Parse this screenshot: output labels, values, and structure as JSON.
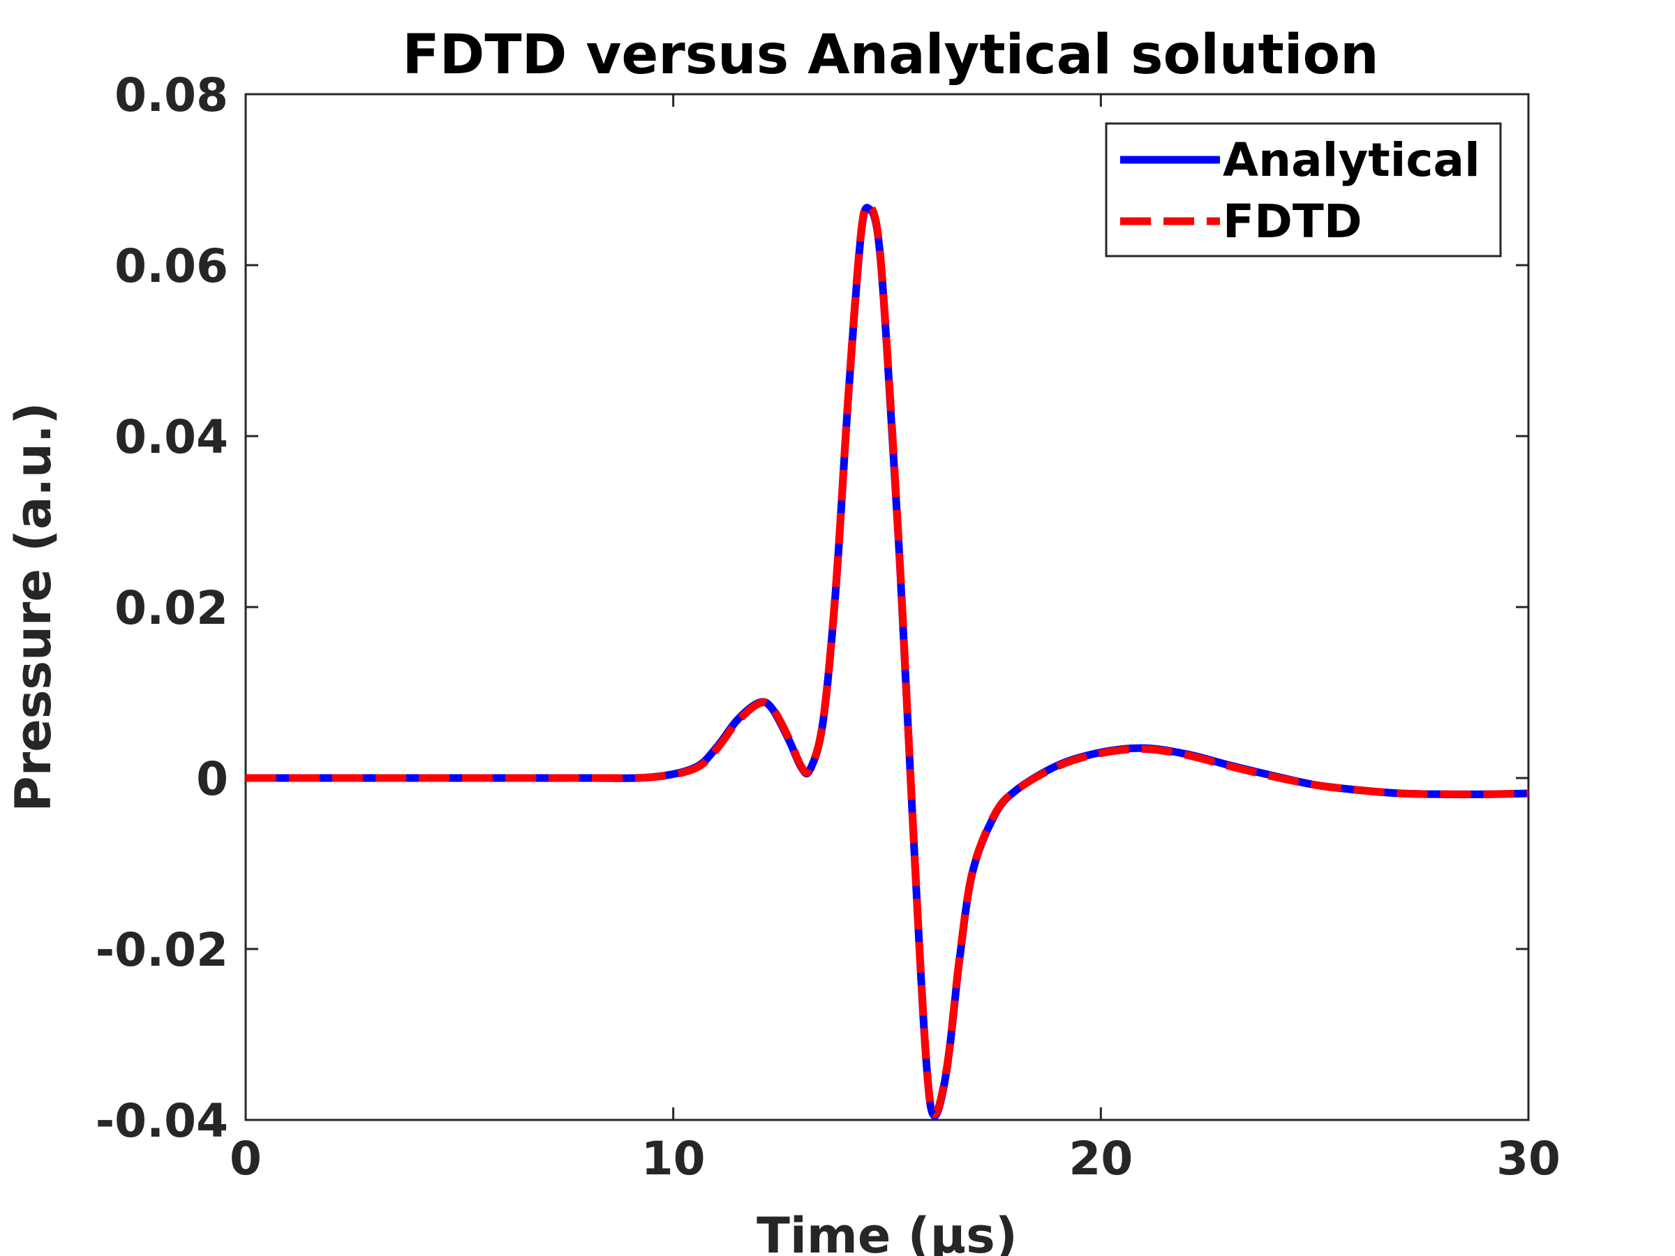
{
  "chart_data": {
    "type": "line",
    "title": "FDTD versus Analytical solution",
    "xlabel": "Time (μs)",
    "ylabel": "Pressure (a.u.)",
    "xlim": [
      0,
      30
    ],
    "ylim": [
      -0.04,
      0.08
    ],
    "xticks": [
      0,
      10,
      20,
      30
    ],
    "xtick_labels": [
      "0",
      "10",
      "20",
      "30"
    ],
    "yticks": [
      -0.04,
      -0.02,
      0,
      0.02,
      0.04,
      0.06,
      0.08
    ],
    "ytick_labels": [
      "-0.04",
      "-0.02",
      "0",
      "0.02",
      "0.04",
      "0.06",
      "0.08"
    ],
    "grid": false,
    "legend_position": "top-right",
    "series": [
      {
        "name": "Analytical",
        "color": "#0000ff",
        "style": "solid",
        "x": [
          0,
          2,
          4,
          6,
          8,
          9.5,
          10.5,
          11,
          11.5,
          12,
          12.3,
          12.7,
          13.0,
          13.2,
          13.5,
          13.8,
          14.1,
          14.4,
          14.6,
          14.8,
          15.0,
          15.3,
          15.6,
          15.9,
          16.1,
          16.4,
          16.7,
          17.0,
          17.5,
          18.0,
          19.0,
          20.0,
          21.0,
          22.0,
          23.0,
          24.0,
          25.0,
          26.0,
          27.0,
          28.0,
          29.0,
          30.0
        ],
        "y": [
          0,
          0,
          0,
          0,
          0,
          0.0001,
          0.0012,
          0.0035,
          0.0068,
          0.0088,
          0.0082,
          0.0045,
          0.0012,
          0.001,
          0.0065,
          0.022,
          0.045,
          0.064,
          0.0665,
          0.063,
          0.05,
          0.025,
          -0.005,
          -0.032,
          -0.0395,
          -0.034,
          -0.021,
          -0.011,
          -0.0045,
          -0.0015,
          0.0015,
          0.003,
          0.0035,
          0.0028,
          0.0015,
          0.0003,
          -0.0008,
          -0.0014,
          -0.0018,
          -0.0019,
          -0.0019,
          -0.0018
        ]
      },
      {
        "name": "FDTD",
        "color": "#ff0000",
        "style": "dashed",
        "x": [
          0,
          2,
          4,
          6,
          8,
          9.5,
          10.5,
          11,
          11.5,
          12,
          12.3,
          12.7,
          13.0,
          13.2,
          13.5,
          13.8,
          14.1,
          14.4,
          14.6,
          14.8,
          15.0,
          15.3,
          15.6,
          15.9,
          16.1,
          16.4,
          16.7,
          17.0,
          17.5,
          18.0,
          19.0,
          20.0,
          21.0,
          22.0,
          23.0,
          24.0,
          25.0,
          26.0,
          27.0,
          28.0,
          29.0,
          30.0
        ],
        "y": [
          0,
          0,
          0,
          0,
          0,
          0.0001,
          0.0011,
          0.0033,
          0.0066,
          0.0087,
          0.0083,
          0.0047,
          0.0013,
          0.0011,
          0.0066,
          0.0222,
          0.0452,
          0.0642,
          0.0668,
          0.0632,
          0.0502,
          0.0252,
          -0.0048,
          -0.0318,
          -0.0393,
          -0.0338,
          -0.0208,
          -0.0109,
          -0.0044,
          -0.0015,
          0.0014,
          0.0029,
          0.0034,
          0.0027,
          0.0014,
          0.0002,
          -0.0008,
          -0.0014,
          -0.0018,
          -0.0019,
          -0.0019,
          -0.0018
        ]
      }
    ]
  }
}
